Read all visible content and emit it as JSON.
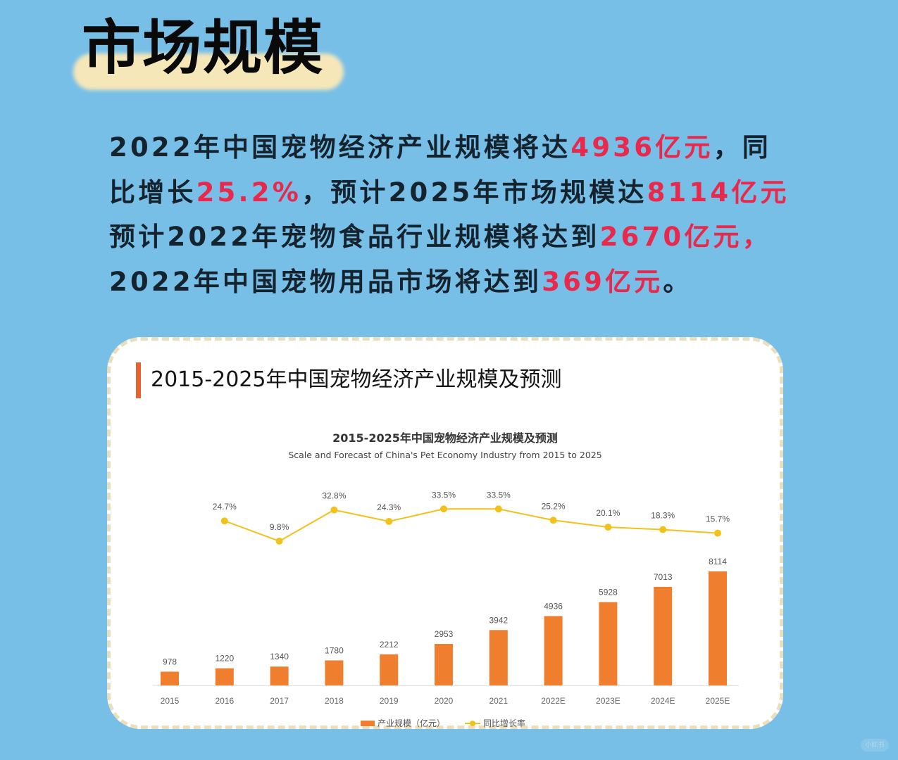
{
  "hero": {
    "title": "市场规模"
  },
  "summary": {
    "lines": [
      [
        {
          "t": "2022年中国宠物经济产业规模将达",
          "hl": false
        },
        {
          "t": "4936亿元",
          "hl": true
        },
        {
          "t": "，同",
          "hl": false
        }
      ],
      [
        {
          "t": "比增长",
          "hl": false
        },
        {
          "t": "25.2%",
          "hl": true
        },
        {
          "t": "，预计2025年市场规模达",
          "hl": false
        },
        {
          "t": "8114亿元",
          "hl": true
        }
      ],
      [
        {
          "t": "预计2022年宠物食品行业规模将达到",
          "hl": false
        },
        {
          "t": "2670亿元",
          "hl": true
        },
        {
          "t": "，",
          "hl": true
        }
      ],
      [
        {
          "t": "2022年中国宠物用品市场将达到",
          "hl": false
        },
        {
          "t": "369亿元",
          "hl": true
        },
        {
          "t": "。",
          "hl": false
        }
      ]
    ]
  },
  "card": {
    "heading": "2015-2025年中国宠物经济产业规模及预测"
  },
  "colors": {
    "bar": "#ef7f2e",
    "line": "#f2c21a",
    "highlight": "#e8294c",
    "accent_bar": "#e9612f",
    "background": "#78bfe8"
  },
  "chart_data": {
    "type": "bar",
    "title": "2015-2025年中国宠物经济产业规模及预测",
    "subtitle": "Scale and Forecast of China's Pet Economy Industry from 2015 to 2025",
    "xlabel": "",
    "ylabel": "",
    "categories": [
      "2015",
      "2016",
      "2017",
      "2018",
      "2019",
      "2020",
      "2021",
      "2022E",
      "2023E",
      "2024E",
      "2025E"
    ],
    "series": [
      {
        "name": "产业规模（亿元）",
        "type": "bar",
        "values": [
          978,
          1220,
          1340,
          1780,
          2212,
          2953,
          3942,
          4936,
          5928,
          7013,
          8114
        ]
      },
      {
        "name": "同比增长率",
        "type": "line",
        "values": [
          null,
          24.7,
          9.8,
          32.8,
          24.3,
          33.5,
          33.5,
          25.2,
          20.1,
          18.3,
          15.7
        ],
        "labels": [
          "",
          "24.7%",
          "9.8%",
          "32.8%",
          "24.3%",
          "33.5%",
          "33.5%",
          "25.2%",
          "20.1%",
          "18.3%",
          "15.7%"
        ]
      }
    ],
    "grid": false,
    "legend_position": "bottom"
  },
  "legend": {
    "bar_label": "产业规模（亿元）",
    "line_label": "同比增长率"
  },
  "watermark": {
    "text": "小红书"
  }
}
